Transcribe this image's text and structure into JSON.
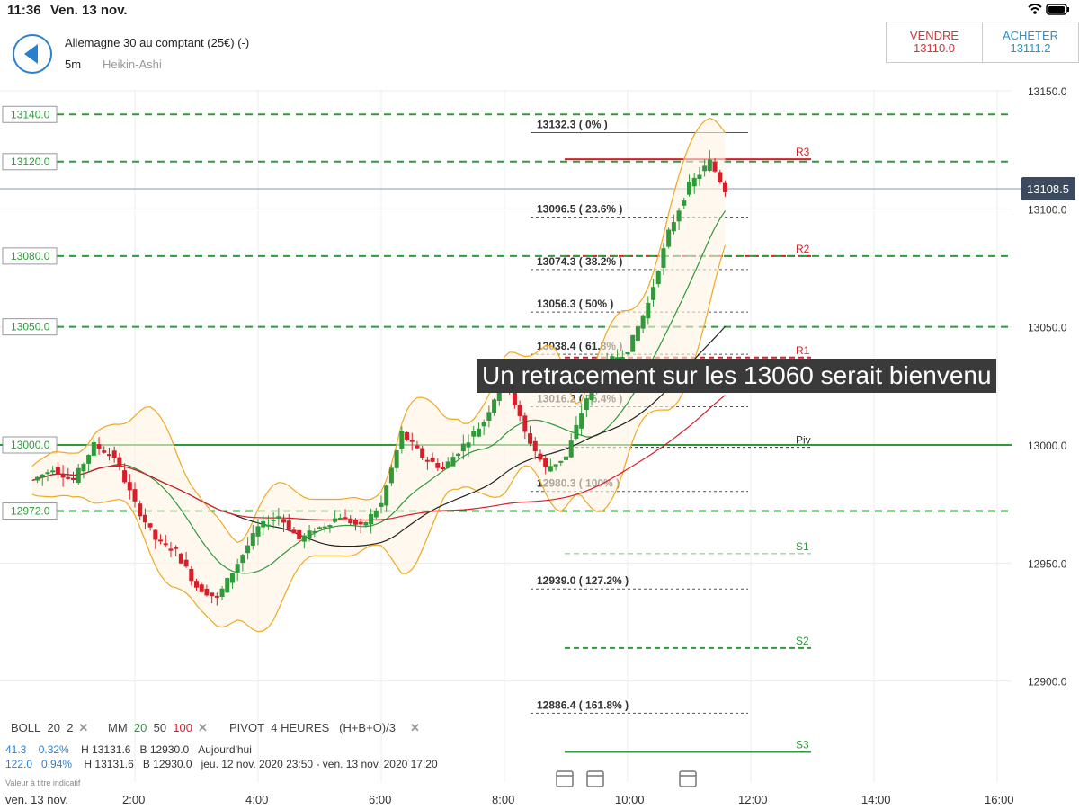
{
  "status_bar": {
    "time": "11:36",
    "date": "Ven. 13 nov."
  },
  "header": {
    "instrument": "Allemagne 30 au comptant (25€) (-)",
    "timeframe": "5m",
    "chart_type": "Heikin-Ashi",
    "sell_label": "VENDRE",
    "sell_price": "13110.0",
    "buy_label": "ACHETER",
    "buy_price": "13111.2"
  },
  "caption": "Un retracement sur les 13060 serait bienvenu",
  "chart_data": {
    "type": "line",
    "y_axis_ticks": [
      "13150.0",
      "13100.0",
      "13050.0",
      "13000.0",
      "12950.0",
      "12900.0"
    ],
    "x_axis_ticks": [
      "ven. 13 nov.",
      "2:00",
      "4:00",
      "6:00",
      "8:00",
      "10:00",
      "12:00",
      "14:00",
      "16:00"
    ],
    "current_price": "13108.5",
    "horizontal_levels": [
      {
        "label": "13140.0",
        "value": 13140.0
      },
      {
        "label": "13120.0",
        "value": 13120.0
      },
      {
        "label": "13080.0",
        "value": 13080.0
      },
      {
        "label": "13050.0",
        "value": 13050.0
      },
      {
        "label": "13000.0",
        "value": 13000.0
      },
      {
        "label": "12972.0",
        "value": 12972.0
      }
    ],
    "fibonacci": [
      {
        "label": "13132.3 ( 0% )",
        "value": 13132.3
      },
      {
        "label": "13096.5 ( 23.6% )",
        "value": 13096.5
      },
      {
        "label": "13074.3 ( 38.2% )",
        "value": 13074.3
      },
      {
        "label": "13056.3 ( 50% )",
        "value": 13056.3
      },
      {
        "label": "13038.4 ( 61.8% )",
        "value": 13038.4
      },
      {
        "label": "13016.2 ( 76.4% )",
        "value": 13016.2
      },
      {
        "label": "12980.3 ( 100% )",
        "value": 12980.3
      },
      {
        "label": "12939.0 ( 127.2% )",
        "value": 12939.0
      },
      {
        "label": "12886.4 ( 161.8% )",
        "value": 12886.4
      }
    ],
    "pivots": [
      {
        "label": "R3",
        "value": 13121
      },
      {
        "label": "R2",
        "value": 13080
      },
      {
        "label": "R1",
        "value": 13037
      },
      {
        "label": "Piv",
        "value": 12999
      },
      {
        "label": "S1",
        "value": 12954
      },
      {
        "label": "S2",
        "value": 12914
      },
      {
        "label": "S3",
        "value": 12870
      }
    ],
    "price_path": {
      "x": [
        "00:20",
        "00:40",
        "01:00",
        "01:20",
        "01:40",
        "02:00",
        "02:20",
        "02:40",
        "03:00",
        "03:20",
        "03:40",
        "04:00",
        "04:20",
        "04:40",
        "05:00",
        "05:20",
        "05:40",
        "06:00",
        "06:20",
        "06:40",
        "07:00",
        "07:20",
        "07:40",
        "08:00",
        "08:20",
        "08:40",
        "09:00",
        "09:20",
        "09:40",
        "10:00",
        "10:20",
        "10:40",
        "11:00",
        "11:20",
        "11:35"
      ],
      "y": [
        12985,
        12990,
        12985,
        13000,
        12995,
        12975,
        12960,
        12955,
        12940,
        12935,
        12950,
        12965,
        12970,
        12960,
        12965,
        12970,
        12965,
        12975,
        13005,
        12995,
        12990,
        13000,
        13010,
        13030,
        13005,
        12990,
        12995,
        13020,
        13035,
        13040,
        13060,
        13090,
        13110,
        13120,
        13108
      ]
    },
    "colors": {
      "bull": "#2f9a3a",
      "bear": "#d81e2a",
      "sell": "#d0343a",
      "buy": "#2a90c8",
      "band": "#f0a820"
    }
  },
  "indicators": {
    "boll": {
      "name": "BOLL",
      "p1": "20",
      "p2": "2"
    },
    "mm": {
      "name": "MM",
      "p1": "20",
      "p2": "50",
      "p3": "100"
    },
    "pivot": {
      "name": "PIVOT",
      "period": "4 HEURES",
      "formula": "(H+B+O)/3"
    }
  },
  "stats": [
    {
      "change": "41.3",
      "pct": "0.32%",
      "high": "H 13131.6",
      "low": "B 12930.0",
      "period": "Aujourd'hui"
    },
    {
      "change": "122.0",
      "pct": "0.94%",
      "high": "H 13131.6",
      "low": "B 12930.0",
      "period": "jeu. 12 nov. 2020 23:50 - ven. 13 nov. 2020 17:20"
    }
  ],
  "note": "Valeur à titre indicatif"
}
